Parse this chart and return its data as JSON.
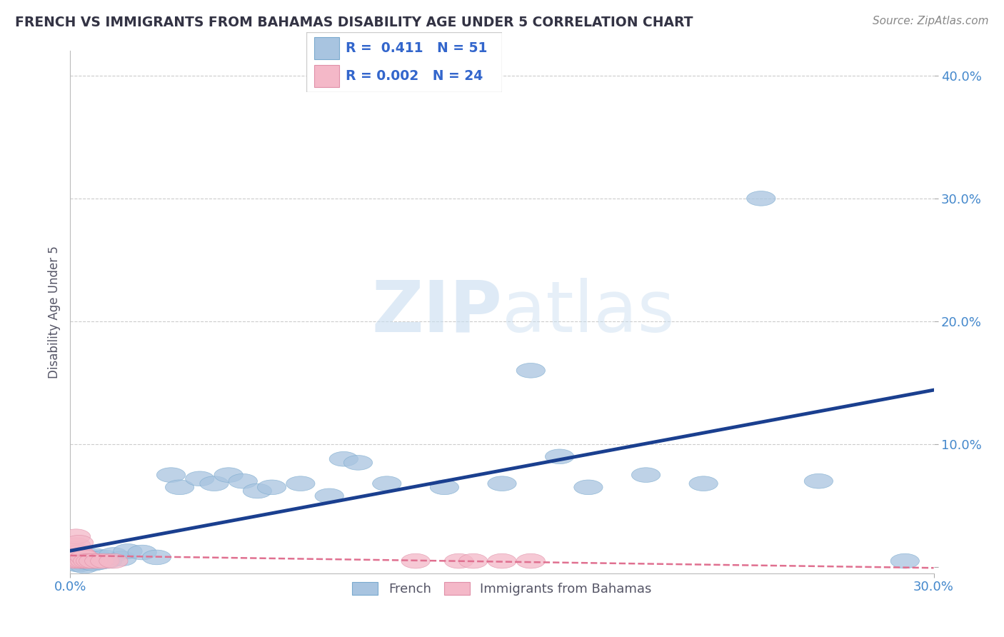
{
  "title": "FRENCH VS IMMIGRANTS FROM BAHAMAS DISABILITY AGE UNDER 5 CORRELATION CHART",
  "source": "Source: ZipAtlas.com",
  "ylabel": "Disability Age Under 5",
  "xlim": [
    0.0,
    0.3
  ],
  "ylim": [
    -0.005,
    0.42
  ],
  "xticks": [
    0.0,
    0.3
  ],
  "yticks": [
    0.0,
    0.1,
    0.2,
    0.3,
    0.4
  ],
  "ytick_labels": [
    "",
    "10.0%",
    "20.0%",
    "30.0%",
    "40.0%"
  ],
  "xtick_labels": [
    "0.0%",
    "30.0%"
  ],
  "grid_yticks": [
    0.1,
    0.2,
    0.3,
    0.4
  ],
  "bg_color": "#ffffff",
  "french_color": "#a8c4e0",
  "french_edge_color": "#7aaace",
  "french_line_color": "#1a3f8f",
  "immigrants_color": "#f4b8c8",
  "immigrants_edge_color": "#e090a8",
  "immigrants_line_color": "#e07090",
  "tick_color": "#4488cc",
  "grid_color": "#cccccc",
  "watermark_color": "#ddeeff",
  "legend_r_french": "0.411",
  "legend_n_french": "51",
  "legend_r_immigrants": "0.002",
  "legend_n_immigrants": "24",
  "french_x": [
    0.001,
    0.002,
    0.002,
    0.003,
    0.003,
    0.004,
    0.004,
    0.005,
    0.005,
    0.005,
    0.006,
    0.006,
    0.007,
    0.007,
    0.008,
    0.008,
    0.009,
    0.009,
    0.01,
    0.01,
    0.011,
    0.012,
    0.013,
    0.015,
    0.018,
    0.02,
    0.025,
    0.03,
    0.035,
    0.038,
    0.045,
    0.05,
    0.055,
    0.06,
    0.065,
    0.07,
    0.08,
    0.09,
    0.095,
    0.1,
    0.11,
    0.13,
    0.15,
    0.16,
    0.17,
    0.18,
    0.2,
    0.22,
    0.24,
    0.26,
    0.29
  ],
  "french_y": [
    0.005,
    0.003,
    0.006,
    0.002,
    0.005,
    0.004,
    0.007,
    0.003,
    0.006,
    0.001,
    0.004,
    0.007,
    0.005,
    0.008,
    0.003,
    0.006,
    0.005,
    0.009,
    0.004,
    0.007,
    0.006,
    0.008,
    0.005,
    0.01,
    0.007,
    0.013,
    0.012,
    0.008,
    0.075,
    0.065,
    0.072,
    0.068,
    0.075,
    0.07,
    0.062,
    0.065,
    0.068,
    0.058,
    0.088,
    0.085,
    0.068,
    0.065,
    0.068,
    0.16,
    0.09,
    0.065,
    0.075,
    0.068,
    0.3,
    0.07,
    0.005
  ],
  "immigrants_x": [
    0.001,
    0.001,
    0.001,
    0.002,
    0.002,
    0.002,
    0.003,
    0.003,
    0.003,
    0.004,
    0.004,
    0.005,
    0.005,
    0.006,
    0.007,
    0.008,
    0.01,
    0.012,
    0.015,
    0.12,
    0.135,
    0.14,
    0.15,
    0.16
  ],
  "immigrants_y": [
    0.005,
    0.01,
    0.015,
    0.008,
    0.018,
    0.025,
    0.005,
    0.012,
    0.02,
    0.005,
    0.01,
    0.005,
    0.008,
    0.005,
    0.005,
    0.005,
    0.005,
    0.005,
    0.005,
    0.005,
    0.005,
    0.005,
    0.005,
    0.005
  ]
}
